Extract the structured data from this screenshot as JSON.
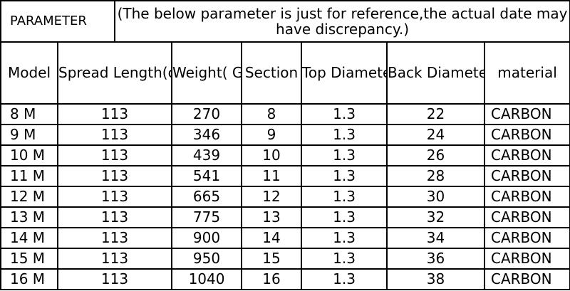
{
  "header": {
    "label": "PARAMETER",
    "note": "(The below parameter is just for reference,the actual date may have discrepancy.)"
  },
  "columns": [
    "Model",
    "Spread Length(cm)",
    "Weight( G)",
    "Section",
    "Top Diameter( mm)",
    "Back Diameter(m m)",
    "material"
  ],
  "rows": [
    {
      "model": "8 M",
      "spread": "113",
      "weight": "270",
      "section": "8",
      "top": "1.3",
      "back": "22",
      "material": "CARBON"
    },
    {
      "model": "9 M",
      "spread": "113",
      "weight": "346",
      "section": "9",
      "top": "1.3",
      "back": "24",
      "material": "CARBON"
    },
    {
      "model": "10 M",
      "spread": "113",
      "weight": "439",
      "section": "10",
      "top": "1.3",
      "back": "26",
      "material": "CARBON"
    },
    {
      "model": "11 M",
      "spread": "113",
      "weight": "541",
      "section": "11",
      "top": "1.3",
      "back": "28",
      "material": "CARBON"
    },
    {
      "model": "12 M",
      "spread": "113",
      "weight": "665",
      "section": "12",
      "top": "1.3",
      "back": "30",
      "material": "CARBON"
    },
    {
      "model": "13 M",
      "spread": "113",
      "weight": "775",
      "section": "13",
      "top": "1.3",
      "back": "32",
      "material": "CARBON"
    },
    {
      "model": "14 M",
      "spread": "113",
      "weight": "900",
      "section": "14",
      "top": "1.3",
      "back": "34",
      "material": "CARBON"
    },
    {
      "model": "15 M",
      "spread": "113",
      "weight": "950",
      "section": "15",
      "top": "1.3",
      "back": "36",
      "material": "CARBON"
    },
    {
      "model": "16 M",
      "spread": "113",
      "weight": "1040",
      "section": "16",
      "top": "1.3",
      "back": "38",
      "material": "CARBON"
    }
  ]
}
